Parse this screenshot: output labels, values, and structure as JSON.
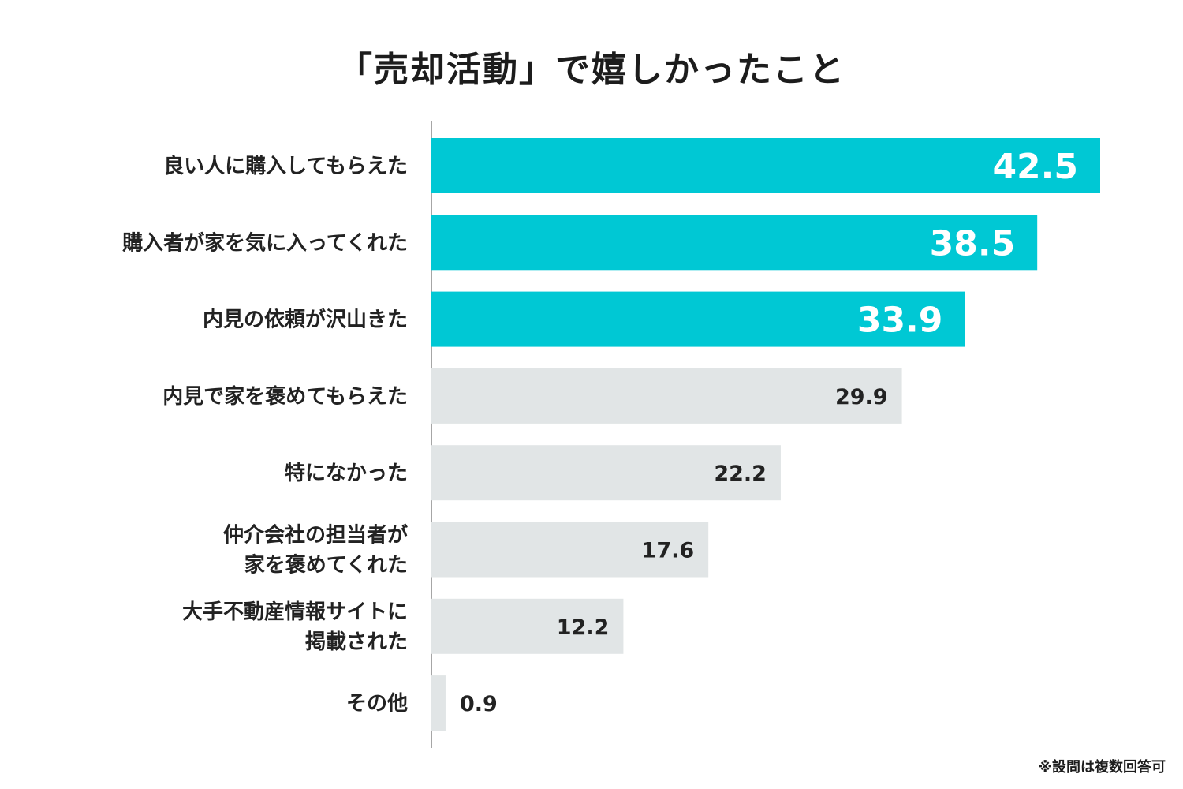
{
  "title": "「売却活動」で嬉しかったこと",
  "note": "※設問は複数回答可",
  "colors": {
    "highlight": "#00c8d4",
    "normal": "#e1e5e6",
    "axis": "#888888",
    "highlight_text": "#ffffff",
    "normal_text": "#222222"
  },
  "chart_data": {
    "type": "bar",
    "orientation": "horizontal",
    "title": "「売却活動」で嬉しかったこと",
    "unit": "%",
    "xlim": [
      0,
      45
    ],
    "categories": [
      [
        "良い人に購入してもらえた"
      ],
      [
        "購入者が家を気に入ってくれた"
      ],
      [
        "内見の依頼が沢山きた"
      ],
      [
        "内見で家を褒めてもらえた"
      ],
      [
        "特になかった"
      ],
      [
        "仲介会社の担当者が",
        "家を褒めてくれた"
      ],
      [
        "大手不動産情報サイトに",
        "掲載された"
      ],
      [
        "その他"
      ]
    ],
    "values": [
      42.5,
      38.5,
      33.9,
      29.9,
      22.2,
      17.6,
      12.2,
      0.9
    ],
    "value_labels": [
      "42.5",
      "38.5",
      "33.9",
      "29.9",
      "22.2",
      "17.6",
      "12.2",
      "0.9"
    ],
    "highlighted": [
      true,
      true,
      true,
      false,
      false,
      false,
      false,
      false
    ]
  }
}
